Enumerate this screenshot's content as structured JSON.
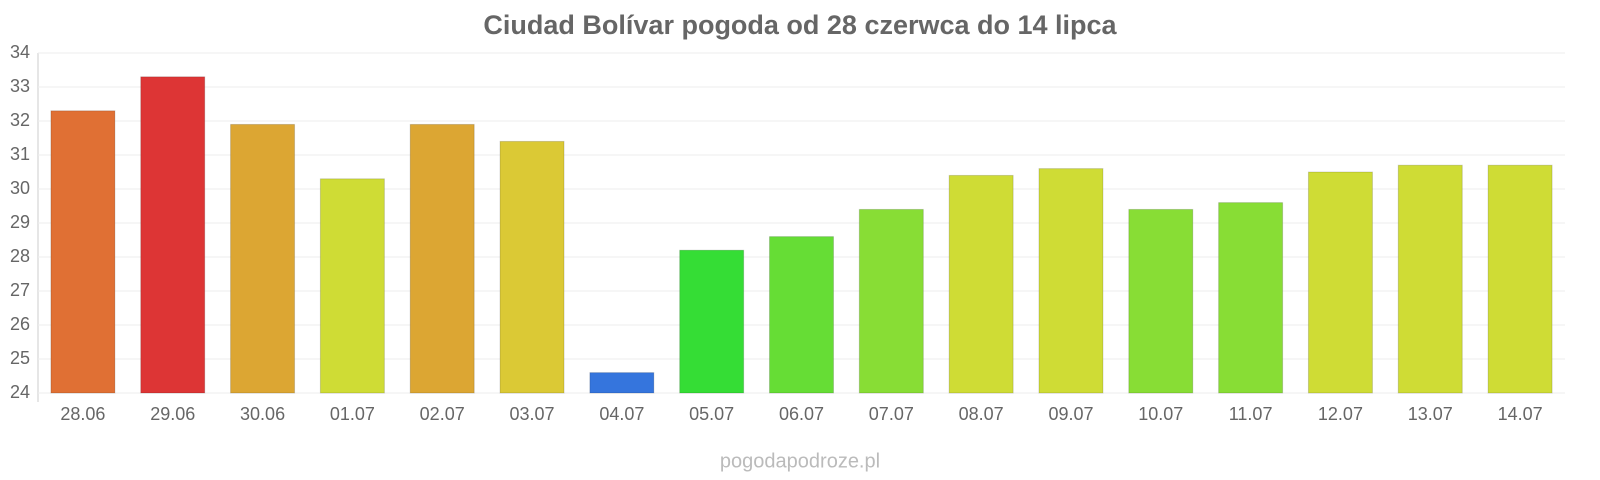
{
  "chart_data": {
    "type": "bar",
    "title": "Ciudad Bolívar pogoda od 28 czerwca do 14 lipca",
    "categories": [
      "28.06",
      "29.06",
      "30.06",
      "01.07",
      "02.07",
      "03.07",
      "04.07",
      "05.07",
      "06.07",
      "07.07",
      "08.07",
      "09.07",
      "10.07",
      "11.07",
      "12.07",
      "13.07",
      "14.07"
    ],
    "values": [
      32.3,
      33.3,
      31.9,
      30.3,
      31.9,
      31.4,
      24.6,
      28.2,
      28.6,
      29.4,
      30.4,
      30.6,
      29.4,
      29.6,
      30.5,
      30.7,
      30.7
    ],
    "colors": [
      "#e07034",
      "#dd3535",
      "#dca633",
      "#cfdc35",
      "#dca633",
      "#dbc935",
      "#3575dd",
      "#35dd35",
      "#66dd35",
      "#88dd35",
      "#cfdc35",
      "#cfdc35",
      "#88dd35",
      "#88dd35",
      "#cfdc35",
      "#cfdc35",
      "#cfdc35"
    ],
    "ylim": [
      24,
      34
    ],
    "yticks": [
      24,
      25,
      26,
      27,
      28,
      29,
      30,
      31,
      32,
      33,
      34
    ],
    "grid": true,
    "source": "pogodapodroze.pl"
  }
}
